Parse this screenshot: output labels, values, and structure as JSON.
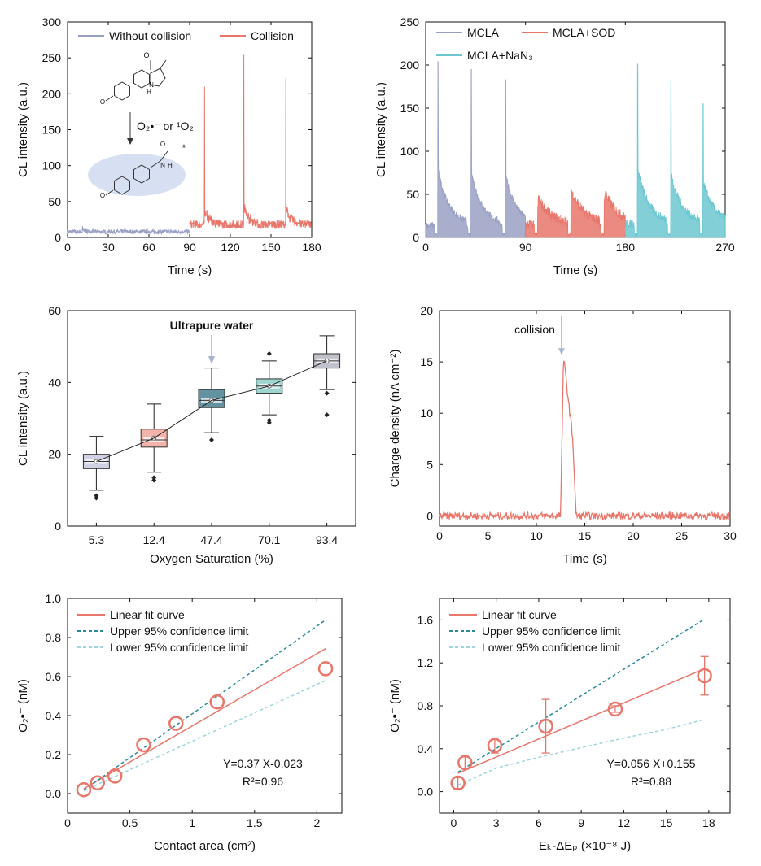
{
  "colors": {
    "gray_blue": "#9aa0c4",
    "salmon": "#e8766a",
    "cyan": "#6cc7d1",
    "arrow": "#a7b4cf",
    "teal_dash": "#2a8a9a",
    "light_dash": "#9fd4df",
    "box_fills": [
      "#bfc3dc",
      "#ee9a8d",
      "#2f6f80",
      "#7cc8bf",
      "#a9adb8"
    ]
  },
  "chart_data": [
    {
      "id": "a",
      "type": "line",
      "xlabel": "Time (s)",
      "ylabel": "CL intensity (a.u.)",
      "xlim": [
        0,
        180
      ],
      "ylim": [
        0,
        300
      ],
      "xticks": [
        0,
        30,
        60,
        90,
        120,
        150,
        180
      ],
      "yticks": [
        0,
        50,
        100,
        150,
        200,
        250,
        300
      ],
      "grid": false,
      "legend_position": "top-left",
      "series": [
        {
          "name": "Without collision",
          "color": "#9aa0c4",
          "x_range": [
            0,
            90
          ],
          "baseline": 8,
          "noise": 3,
          "spikes": [
            {
              "x": 11,
              "y": 16
            }
          ]
        },
        {
          "name": "Collision",
          "color": "#e8766a",
          "x_range": [
            90,
            180
          ],
          "baseline": 18,
          "noise": 6,
          "spikes": [
            {
              "x": 101,
              "y": 210
            },
            {
              "x": 130,
              "y": 254
            },
            {
              "x": 161,
              "y": 222
            }
          ]
        }
      ],
      "annotation": {
        "reaction_label": "O₂•⁻ or ¹O₂",
        "molecule": "MCLA",
        "asterisk": "*"
      }
    },
    {
      "id": "b",
      "type": "line",
      "xlabel": "Time (s)",
      "ylabel": "CL intensity (a.u.)",
      "xlim": [
        0,
        270
      ],
      "ylim": [
        0,
        250
      ],
      "xticks": [
        0,
        90,
        180,
        270
      ],
      "yticks": [
        0,
        50,
        100,
        150,
        200,
        250
      ],
      "grid": false,
      "legend_position": "top-left",
      "series": [
        {
          "name": "MCLA",
          "color": "#9aa0c4",
          "x_range": [
            0,
            90
          ],
          "baseline": 14,
          "noise": 4,
          "spikes": [
            {
              "x": 11,
              "y": 204
            },
            {
              "x": 41,
              "y": 195
            },
            {
              "x": 72,
              "y": 183
            }
          ]
        },
        {
          "name": "MCLA+SOD",
          "color": "#e8766a",
          "x_range": [
            90,
            180
          ],
          "baseline": 15,
          "noise": 6,
          "spikes": [
            {
              "x": 101,
              "y": 35
            },
            {
              "x": 131,
              "y": 45
            },
            {
              "x": 161,
              "y": 44
            }
          ]
        },
        {
          "name": "MCLA+NaN₃",
          "color": "#6cc7d1",
          "x_range": [
            180,
            270
          ],
          "baseline": 16,
          "noise": 5,
          "spikes": [
            {
              "x": 191,
              "y": 201
            },
            {
              "x": 221,
              "y": 183
            },
            {
              "x": 250,
              "y": 155
            }
          ]
        }
      ]
    },
    {
      "id": "c",
      "type": "box",
      "xlabel": "Oxygen Saturation (%)",
      "ylabel": "CL intensity (a.u.)",
      "ylim": [
        0,
        60
      ],
      "yticks": [
        0,
        20,
        40,
        60
      ],
      "categories": [
        "5.3",
        "12.4",
        "47.4",
        "70.1",
        "93.4"
      ],
      "boxes": [
        {
          "whisker_low": 10,
          "q1": 16,
          "median": 18,
          "q3": 20,
          "whisker_high": 25,
          "mean": 18,
          "outliers": [
            8.5,
            7.8
          ]
        },
        {
          "whisker_low": 15,
          "q1": 22,
          "median": 24,
          "q3": 27,
          "whisker_high": 34,
          "mean": 24.5,
          "outliers": [
            13.5,
            12.8
          ]
        },
        {
          "whisker_low": 26,
          "q1": 33,
          "median": 35,
          "q3": 38,
          "whisker_high": 44,
          "mean": 35,
          "outliers": [
            24
          ]
        },
        {
          "whisker_low": 31,
          "q1": 37,
          "median": 39,
          "q3": 41,
          "whisker_high": 46,
          "mean": 39,
          "outliers": [
            48,
            29.5,
            28.8
          ]
        },
        {
          "whisker_low": 38,
          "q1": 44,
          "median": 46,
          "q3": 48,
          "whisker_high": 53,
          "mean": 46,
          "outliers": [
            37,
            31
          ]
        }
      ],
      "annotation": {
        "text": "Ultrapure water",
        "target_category": "47.4"
      }
    },
    {
      "id": "d",
      "type": "line",
      "xlabel": "Time (s)",
      "ylabel": "Charge density (nA cm⁻²)",
      "xlim": [
        0,
        30
      ],
      "ylim": [
        -1,
        20
      ],
      "xticks": [
        0,
        5,
        10,
        15,
        20,
        25,
        30
      ],
      "yticks": [
        0,
        5,
        10,
        15,
        20
      ],
      "grid": false,
      "series": [
        {
          "name": "",
          "color": "#e8766a",
          "baseline": 0,
          "noise": 0.35,
          "peak": {
            "x_start": 12.5,
            "x_peak": 12.8,
            "y_peak": 15.5,
            "x_end": 14.1
          }
        }
      ],
      "annotation": {
        "text": "collision",
        "x": 12.6,
        "y_from": 19.5,
        "y_to": 15.7
      }
    },
    {
      "id": "e",
      "type": "scatter",
      "xlabel": "Contact area (cm²)",
      "ylabel": "O₂•⁻ (nM)",
      "xlim": [
        0,
        2.2
      ],
      "ylim": [
        -0.1,
        1.0
      ],
      "xticks": [
        0.0,
        0.5,
        1.0,
        1.5,
        2.0
      ],
      "yticks": [
        0.0,
        0.2,
        0.4,
        0.6,
        0.8,
        1.0
      ],
      "grid": false,
      "legend_position": "top-left",
      "points": [
        {
          "x": 0.13,
          "y": 0.02
        },
        {
          "x": 0.24,
          "y": 0.055
        },
        {
          "x": 0.38,
          "y": 0.09
        },
        {
          "x": 0.61,
          "y": 0.25
        },
        {
          "x": 0.87,
          "y": 0.36
        },
        {
          "x": 1.2,
          "y": 0.47
        },
        {
          "x": 2.07,
          "y": 0.64
        }
      ],
      "fit": {
        "slope": 0.37,
        "intercept": -0.023
      },
      "upper": [
        [
          0.13,
          0.018
        ],
        [
          2.07,
          0.89
        ]
      ],
      "lower": [
        [
          0.13,
          0.015
        ],
        [
          2.07,
          0.58
        ]
      ],
      "legend": [
        "Linear fit curve",
        "Upper 95% confidence limit",
        "Lower 95% confidence limit"
      ],
      "equation": "Y=0.37 X-0.023",
      "r2": "R²=0.96"
    },
    {
      "id": "f",
      "type": "scatter",
      "xlabel": "Eₖ-ΔEₚ (×10⁻⁸ J)",
      "ylabel": "O₂•⁻ (nM)",
      "xlim": [
        -1,
        19.5
      ],
      "ylim": [
        -0.2,
        1.8
      ],
      "xticks": [
        0,
        3,
        6,
        9,
        12,
        15,
        18
      ],
      "yticks": [
        0.0,
        0.4,
        0.8,
        1.2,
        1.6
      ],
      "grid": false,
      "legend_position": "top-left",
      "points": [
        {
          "x": 0.3,
          "y": 0.08,
          "err": 0.05
        },
        {
          "x": 0.8,
          "y": 0.27,
          "err": 0.06
        },
        {
          "x": 2.9,
          "y": 0.43,
          "err": 0.07
        },
        {
          "x": 6.5,
          "y": 0.61,
          "err": 0.25
        },
        {
          "x": 11.4,
          "y": 0.77,
          "err": 0.03
        },
        {
          "x": 17.7,
          "y": 1.08,
          "err": 0.18
        }
      ],
      "fit": {
        "slope": 0.056,
        "intercept": 0.155
      },
      "upper": [
        [
          0.3,
          0.18
        ],
        [
          17.6,
          1.6
        ]
      ],
      "lower": [
        [
          0.3,
          0.06
        ],
        [
          3,
          0.22
        ],
        [
          6,
          0.32
        ],
        [
          9,
          0.41
        ],
        [
          12,
          0.5
        ],
        [
          15,
          0.58
        ],
        [
          17.6,
          0.67
        ]
      ],
      "legend": [
        "Linear fit curve",
        "Upper 95% confidence limit",
        "Lower 95% confidence limit"
      ],
      "equation": "Y=0.056 X+0.155",
      "r2": "R²=0.88"
    }
  ]
}
